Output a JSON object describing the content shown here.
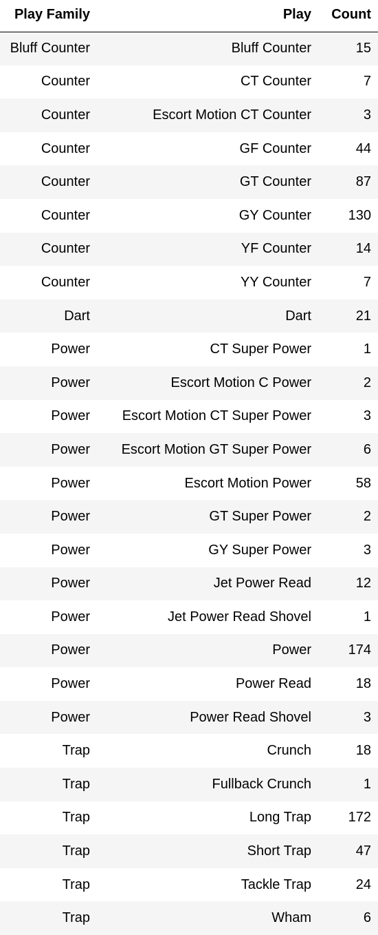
{
  "table": {
    "headers": [
      "Play Family",
      "Play",
      "Count"
    ],
    "rows": [
      [
        "Bluff Counter",
        "Bluff Counter",
        "15"
      ],
      [
        "Counter",
        "CT Counter",
        "7"
      ],
      [
        "Counter",
        "Escort Motion CT Counter",
        "3"
      ],
      [
        "Counter",
        "GF Counter",
        "44"
      ],
      [
        "Counter",
        "GT Counter",
        "87"
      ],
      [
        "Counter",
        "GY Counter",
        "130"
      ],
      [
        "Counter",
        "YF Counter",
        "14"
      ],
      [
        "Counter",
        "YY Counter",
        "7"
      ],
      [
        "Dart",
        "Dart",
        "21"
      ],
      [
        "Power",
        "CT Super Power",
        "1"
      ],
      [
        "Power",
        "Escort Motion C Power",
        "2"
      ],
      [
        "Power",
        "Escort Motion CT Super Power",
        "3"
      ],
      [
        "Power",
        "Escort Motion GT Super Power",
        "6"
      ],
      [
        "Power",
        "Escort Motion Power",
        "58"
      ],
      [
        "Power",
        "GT Super Power",
        "2"
      ],
      [
        "Power",
        "GY Super Power",
        "3"
      ],
      [
        "Power",
        "Jet Power Read",
        "12"
      ],
      [
        "Power",
        "Jet Power Read Shovel",
        "1"
      ],
      [
        "Power",
        "Power",
        "174"
      ],
      [
        "Power",
        "Power Read",
        "18"
      ],
      [
        "Power",
        "Power Read Shovel",
        "3"
      ],
      [
        "Trap",
        "Crunch",
        "18"
      ],
      [
        "Trap",
        "Fullback Crunch",
        "1"
      ],
      [
        "Trap",
        "Long Trap",
        "172"
      ],
      [
        "Trap",
        "Short Trap",
        "47"
      ],
      [
        "Trap",
        "Tackle Trap",
        "24"
      ],
      [
        "Trap",
        "Wham",
        "6"
      ]
    ]
  },
  "colors": {
    "stripe": "#f5f5f5",
    "background": "#ffffff",
    "text": "#000000",
    "header_rule": "#000000"
  }
}
